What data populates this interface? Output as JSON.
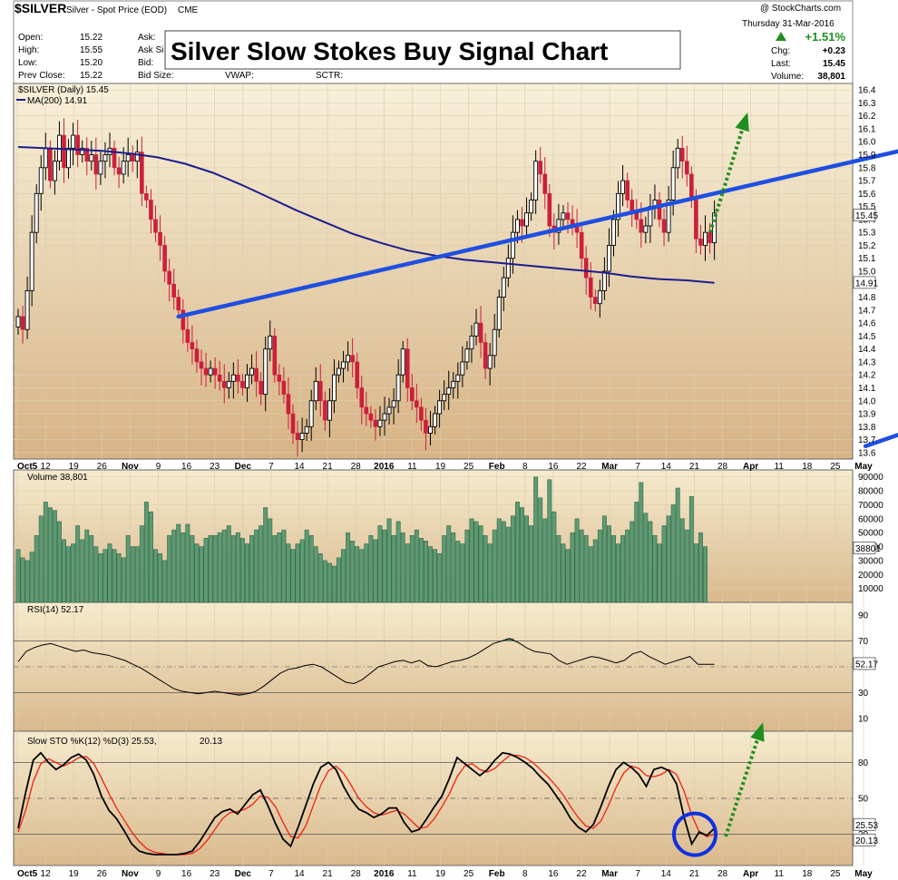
{
  "header": {
    "symbol": "$SILVER",
    "description": "Silver - Spot Price (EOD)",
    "exchange": "CME",
    "watermark": "@ StockCharts.com",
    "date": "Thursday 31-Mar-2016",
    "open_label": "Open:",
    "open": "15.22",
    "high_label": "High:",
    "high": "15.55",
    "low_label": "Low:",
    "low": "15.20",
    "prevclose_label": "Prev Close:",
    "prevclose": "15.22",
    "ask_label": "Ask:",
    "asksize_label": "Ask Si",
    "bid_label": "Bid:",
    "bidsize_label": "Bid Size:",
    "vwap_label": "VWAP:",
    "sctr_label": "SCTR:",
    "pct_change": "+1.51%",
    "chg_label": "Chg:",
    "chg": "+0.23",
    "last_label": "Last:",
    "last": "15.45",
    "volume_label": "Volume:",
    "volume": "38,801"
  },
  "title_box": "Silver Slow Stokes Buy Signal Chart",
  "colors": {
    "panel_top": "#f7efd7",
    "panel_bottom": "#d8b88a",
    "up": "#000000",
    "down": "#cc1f3a",
    "ma": "#1c1c8c",
    "trend": "#1f4fe0",
    "arrow": "#1f8f1f",
    "volume": "#5c9a73",
    "rsi": "#000000",
    "stoch_k": "#000000",
    "stoch_d": "#ee2211"
  },
  "icons": {
    "up_arrow": "up-triangle-icon"
  },
  "chart_data": [
    {
      "type": "candlestick",
      "name": "price",
      "legend": "$SILVER (Daily) 15.45",
      "ma_legend": "MA(200) 14.91",
      "ylim": [
        13.55,
        16.45
      ],
      "yticks": [
        13.6,
        13.7,
        13.8,
        13.9,
        14.0,
        14.1,
        14.2,
        14.3,
        14.4,
        14.5,
        14.6,
        14.7,
        14.8,
        14.9,
        15.0,
        15.1,
        15.2,
        15.3,
        15.4,
        15.5,
        15.6,
        15.7,
        15.8,
        15.9,
        16.0,
        16.1,
        16.2,
        16.3,
        16.4
      ],
      "last_label": "15.45",
      "ma_label": "14.91",
      "closes": [
        14.65,
        14.55,
        14.85,
        15.3,
        15.6,
        15.8,
        15.95,
        15.7,
        15.85,
        16.05,
        15.8,
        15.95,
        16.05,
        15.9,
        15.95,
        15.85,
        15.9,
        15.75,
        15.85,
        15.9,
        15.95,
        15.8,
        15.75,
        15.85,
        15.9,
        15.85,
        15.92,
        15.6,
        15.55,
        15.4,
        15.3,
        15.2,
        15.0,
        14.9,
        14.8,
        14.7,
        14.55,
        14.45,
        14.4,
        14.3,
        14.25,
        14.2,
        14.25,
        14.2,
        14.15,
        14.1,
        14.15,
        14.2,
        14.15,
        14.1,
        14.2,
        14.25,
        14.15,
        14.05,
        14.4,
        14.5,
        14.2,
        14.15,
        14.05,
        13.9,
        13.75,
        13.7,
        13.75,
        13.8,
        14.0,
        14.15,
        14.0,
        13.85,
        14.0,
        14.2,
        14.25,
        14.3,
        14.35,
        14.3,
        14.1,
        13.95,
        13.9,
        13.85,
        13.8,
        13.85,
        13.9,
        13.95,
        14.0,
        14.2,
        14.4,
        14.1,
        14.0,
        13.95,
        13.85,
        13.75,
        13.8,
        13.9,
        14.0,
        14.05,
        14.1,
        14.15,
        14.2,
        14.3,
        14.4,
        14.5,
        14.6,
        14.45,
        14.25,
        14.35,
        14.55,
        14.8,
        14.95,
        15.1,
        15.3,
        15.4,
        15.35,
        15.45,
        15.55,
        15.85,
        15.75,
        15.6,
        15.35,
        15.3,
        15.4,
        15.45,
        15.4,
        15.35,
        15.3,
        15.1,
        14.95,
        14.8,
        14.75,
        14.85,
        15.0,
        15.2,
        15.4,
        15.6,
        15.7,
        15.55,
        15.45,
        15.4,
        15.3,
        15.35,
        15.5,
        15.55,
        15.4,
        15.3,
        15.55,
        15.8,
        15.95,
        15.85,
        15.75,
        15.55,
        15.25,
        15.2,
        15.3,
        15.22,
        15.45
      ],
      "ma200": [
        15.96,
        15.95,
        15.94,
        15.93,
        15.91,
        15.88,
        15.83,
        15.76,
        15.67,
        15.57,
        15.47,
        15.38,
        15.29,
        15.22,
        15.16,
        15.12,
        15.09,
        15.07,
        15.05,
        15.03,
        15.01,
        14.99,
        14.96,
        14.94,
        14.93,
        14.91
      ],
      "trend_upper": [
        [
          7,
          14.65
        ],
        [
          55,
          16.6
        ]
      ],
      "trend_lower": [
        [
          37,
          13.65
        ],
        [
          69,
          15.6
        ]
      ],
      "x_tick_labels": [
        "Oct5",
        "12",
        "19",
        "26",
        "Nov",
        "9",
        "16",
        "23",
        "Dec",
        "7",
        "14",
        "21",
        "28",
        "2016",
        "11",
        "19",
        "25",
        "Feb",
        "8",
        "16",
        "22",
        "Mar",
        "7",
        "14",
        "21",
        "28",
        "Apr",
        "11",
        "18",
        "25",
        "May"
      ]
    },
    {
      "type": "bar",
      "name": "volume",
      "legend": "Volume 38,801",
      "ylim": [
        0,
        95000
      ],
      "yticks": [
        10000,
        20000,
        30000,
        40000,
        50000,
        60000,
        70000,
        80000,
        90000
      ],
      "last_label": "38801",
      "values": [
        38000,
        32000,
        30000,
        36000,
        48000,
        62000,
        72000,
        68000,
        66000,
        58000,
        45000,
        40000,
        42000,
        55000,
        45000,
        52000,
        48000,
        40000,
        35000,
        38000,
        42000,
        38000,
        35000,
        32000,
        48000,
        40000,
        40000,
        55000,
        72000,
        65000,
        38000,
        35000,
        30000,
        48000,
        52000,
        56000,
        50000,
        56000,
        48000,
        42000,
        40000,
        46000,
        48000,
        48000,
        50000,
        52000,
        55000,
        48000,
        50000,
        46000,
        42000,
        48000,
        52000,
        55000,
        68000,
        60000,
        48000,
        50000,
        52000,
        42000,
        38000,
        42000,
        45000,
        52000,
        48000,
        40000,
        35000,
        30000,
        28000,
        26000,
        32000,
        38000,
        50000,
        44000,
        40000,
        38000,
        42000,
        48000,
        45000,
        55000,
        52000,
        60000,
        48000,
        58000,
        50000,
        42000,
        48000,
        52000,
        46000,
        44000,
        40000,
        38000,
        35000,
        48000,
        55000,
        50000,
        44000,
        42000,
        52000,
        60000,
        58000,
        55000,
        48000,
        42000,
        52000,
        60000,
        58000,
        54000,
        62000,
        72000,
        68000,
        62000,
        55000,
        90000,
        75000,
        60000,
        88000,
        65000,
        48000,
        42000,
        38000,
        50000,
        60000,
        52000,
        48000,
        40000,
        45000,
        52000,
        62000,
        55000,
        48000,
        42000,
        48000,
        52000,
        58000,
        72000,
        86000,
        64000,
        58000,
        48000,
        42000,
        55000,
        62000,
        70000,
        82000,
        60000,
        52000,
        76000,
        42000,
        50000,
        40000
      ],
      "x_tick_labels": [
        "Oct5",
        "12",
        "19",
        "26",
        "Nov",
        "9",
        "16",
        "23",
        "Dec",
        "7",
        "14",
        "21",
        "28",
        "2016",
        "11",
        "19",
        "25",
        "Feb",
        "8",
        "16",
        "22",
        "Mar",
        "7",
        "14",
        "21",
        "28",
        "Apr",
        "11",
        "18",
        "25",
        "May"
      ]
    },
    {
      "type": "line",
      "name": "rsi",
      "legend": "RSI(14) 52.17",
      "ylim": [
        0,
        100
      ],
      "yticks": [
        10,
        30,
        50,
        70,
        90
      ],
      "last_label": "52.17",
      "values": [
        54,
        62,
        65,
        67,
        68,
        66,
        64,
        62,
        63,
        61,
        60,
        59,
        57,
        55,
        52,
        49,
        45,
        41,
        37,
        33,
        31,
        30,
        29,
        30,
        31,
        30,
        29,
        28,
        29,
        31,
        35,
        40,
        45,
        48,
        49,
        51,
        52,
        50,
        46,
        42,
        38,
        37,
        40,
        45,
        50,
        52,
        54,
        55,
        53,
        55,
        51,
        50,
        52,
        54,
        55,
        57,
        60,
        64,
        68,
        70,
        72,
        69,
        65,
        62,
        61,
        60,
        55,
        52,
        54,
        56,
        58,
        57,
        55,
        53,
        55,
        60,
        62,
        58,
        55,
        52,
        54,
        56,
        58,
        52,
        52,
        52
      ]
    },
    {
      "type": "line",
      "name": "slow_stochastic",
      "legend": "Slow STO %K(12) %D(3) 25.53,",
      "legend_d": "20.13",
      "ylim": [
        0,
        100
      ],
      "yticks": [
        20,
        50,
        80
      ],
      "k_label": "25.53",
      "d_label": "20.13",
      "k": [
        25,
        55,
        82,
        88,
        80,
        74,
        78,
        84,
        87,
        82,
        70,
        52,
        40,
        33,
        23,
        12,
        6,
        4,
        3,
        3,
        3,
        3,
        4,
        6,
        14,
        24,
        34,
        39,
        41,
        37,
        45,
        53,
        57,
        44,
        29,
        16,
        10,
        26,
        44,
        62,
        76,
        80,
        74,
        60,
        49,
        41,
        38,
        34,
        37,
        42,
        42,
        30,
        22,
        24,
        33,
        43,
        52,
        67,
        84,
        79,
        74,
        69,
        74,
        82,
        88,
        87,
        84,
        80,
        75,
        68,
        62,
        53,
        44,
        33,
        26,
        22,
        28,
        43,
        60,
        74,
        80,
        76,
        70,
        60,
        74,
        76,
        73,
        62,
        34,
        12,
        22,
        19,
        25
      ],
      "d": [
        22,
        40,
        64,
        79,
        83,
        80,
        77,
        80,
        84,
        85,
        79,
        67,
        54,
        42,
        32,
        22,
        14,
        8,
        5,
        4,
        3,
        3,
        3,
        4,
        8,
        15,
        24,
        33,
        38,
        39,
        41,
        45,
        52,
        51,
        43,
        30,
        18,
        17,
        27,
        44,
        61,
        73,
        77,
        71,
        61,
        50,
        43,
        38,
        36,
        38,
        40,
        37,
        31,
        25,
        26,
        33,
        43,
        54,
        68,
        77,
        79,
        74,
        72,
        75,
        81,
        86,
        86,
        84,
        80,
        74,
        68,
        61,
        53,
        43,
        34,
        27,
        25,
        31,
        44,
        59,
        71,
        77,
        75,
        69,
        68,
        70,
        74,
        70,
        56,
        36,
        22,
        18,
        20
      ]
    }
  ],
  "annotations": {
    "buy_signal_circle": "stochastic oversold crossover",
    "arrow": "projected up-move"
  }
}
